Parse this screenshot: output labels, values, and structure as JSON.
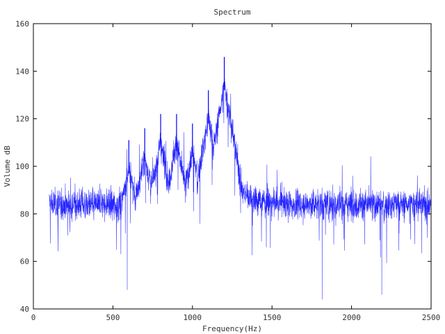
{
  "chart_data": {
    "type": "line",
    "title": "Spectrum",
    "xlabel": "Frequency(Hz)",
    "ylabel": "Volume dB",
    "xlim": [
      0,
      2500
    ],
    "ylim": [
      40,
      160
    ],
    "xticks": [
      0,
      500,
      1000,
      1500,
      2000,
      2500
    ],
    "yticks": [
      40,
      60,
      80,
      100,
      120,
      140,
      160
    ],
    "grid": false,
    "legend": "none",
    "series": [
      {
        "color": "#0000ff",
        "x_range": [
          100,
          2500
        ],
        "baseline_mean_db": 84,
        "noise_spread_db": 7,
        "harmonic_peaks": [
          {
            "x": 600,
            "y": 111
          },
          {
            "x": 700,
            "y": 116
          },
          {
            "x": 800,
            "y": 122
          },
          {
            "x": 900,
            "y": 122
          },
          {
            "x": 1000,
            "y": 118
          },
          {
            "x": 1100,
            "y": 132
          },
          {
            "x": 1200,
            "y": 146
          }
        ],
        "notable_minima": [
          {
            "x": 590,
            "y": 48
          },
          {
            "x": 1815,
            "y": 44
          },
          {
            "x": 2190,
            "y": 46
          }
        ]
      }
    ]
  }
}
